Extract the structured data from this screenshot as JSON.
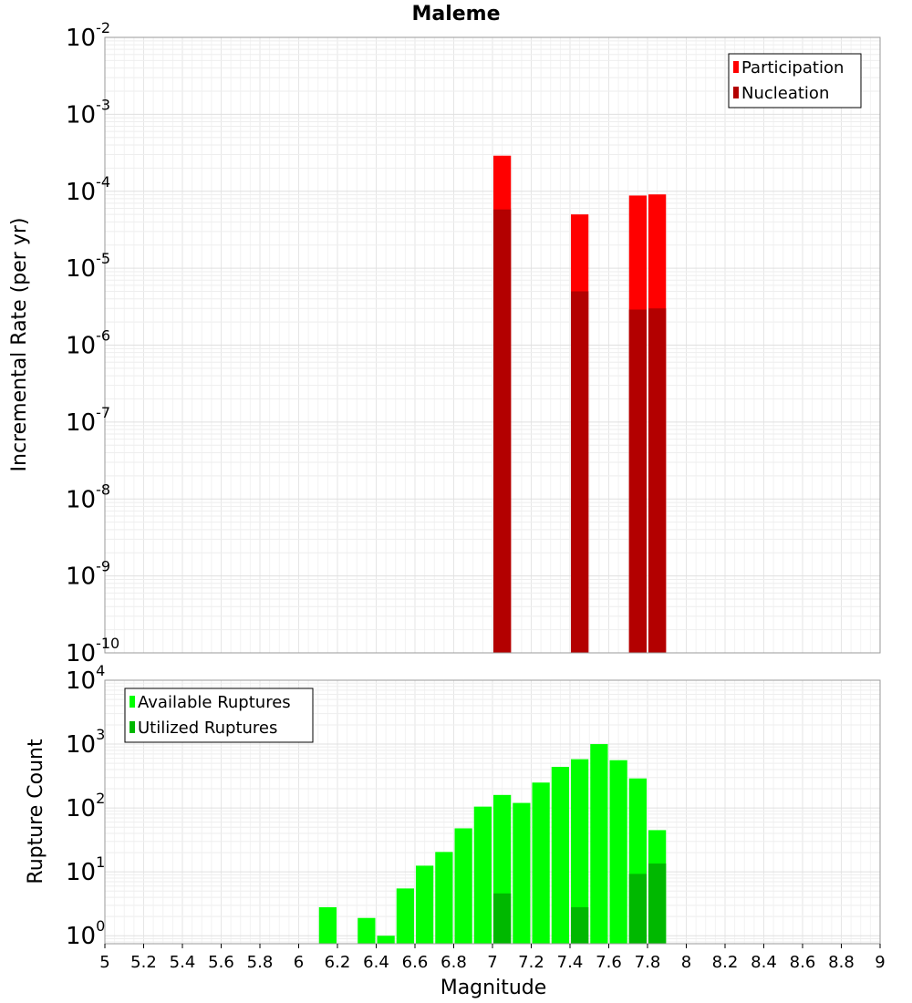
{
  "chart_data": {
    "title": "Maleme",
    "xlabel": "Magnitude",
    "xlim": [
      5,
      9
    ],
    "x_ticks": [
      "5",
      "5.2",
      "5.4",
      "5.6",
      "5.8",
      "6",
      "6.2",
      "6.4",
      "6.6",
      "6.8",
      "7",
      "7.2",
      "7.4",
      "7.6",
      "7.8",
      "8",
      "8.2",
      "8.4",
      "8.6",
      "8.8",
      "9"
    ],
    "panels": [
      {
        "type": "bar",
        "ylabel": "Incremental Rate (per yr)",
        "y_scale": "log",
        "ylim": [
          1e-10,
          0.01
        ],
        "y_ticks": [
          {
            "base": "10",
            "exp": "-10"
          },
          {
            "base": "10",
            "exp": "-9"
          },
          {
            "base": "10",
            "exp": "-8"
          },
          {
            "base": "10",
            "exp": "-7"
          },
          {
            "base": "10",
            "exp": "-6"
          },
          {
            "base": "10",
            "exp": "-5"
          },
          {
            "base": "10",
            "exp": "-4"
          },
          {
            "base": "10",
            "exp": "-3"
          },
          {
            "base": "10",
            "exp": "-2"
          }
        ],
        "legend_position": "top-right",
        "grid": true,
        "series": [
          {
            "name": "Participation",
            "color": "#ff0000",
            "x": [
              7.05,
              7.45,
              7.75,
              7.85
            ],
            "values": [
              0.00029,
              5e-05,
              8.8e-05,
              9.1e-05
            ]
          },
          {
            "name": "Nucleation",
            "color": "#b30000",
            "x": [
              7.05,
              7.45,
              7.75,
              7.85
            ],
            "values": [
              5.8e-05,
              5e-06,
              2.9e-06,
              3e-06
            ]
          }
        ]
      },
      {
        "type": "bar",
        "ylabel": "Rupture Count",
        "y_scale": "log",
        "ylim": [
          0.75,
          10000
        ],
        "y_ticks": [
          {
            "base": "10",
            "exp": "0"
          },
          {
            "base": "10",
            "exp": "1"
          },
          {
            "base": "10",
            "exp": "2"
          },
          {
            "base": "10",
            "exp": "3"
          },
          {
            "base": "10",
            "exp": "4"
          }
        ],
        "legend_position": "top-left",
        "grid": true,
        "series": [
          {
            "name": "Available Ruptures",
            "color": "#00ff00",
            "x": [
              6.15,
              6.35,
              6.45,
              6.55,
              6.65,
              6.75,
              6.85,
              6.95,
              7.05,
              7.15,
              7.25,
              7.35,
              7.45,
              7.55,
              7.65,
              7.75,
              7.85
            ],
            "values": [
              2.8,
              1.9,
              1.0,
              5.5,
              12.5,
              20.5,
              48,
              105,
              160,
              120,
              250,
              440,
              580,
              1000,
              560,
              290,
              45
            ]
          },
          {
            "name": "Utilized Ruptures",
            "color": "#00b800",
            "x": [
              7.05,
              7.45,
              7.75,
              7.85
            ],
            "values": [
              4.6,
              2.8,
              9.3,
              13.5
            ]
          }
        ]
      }
    ]
  }
}
